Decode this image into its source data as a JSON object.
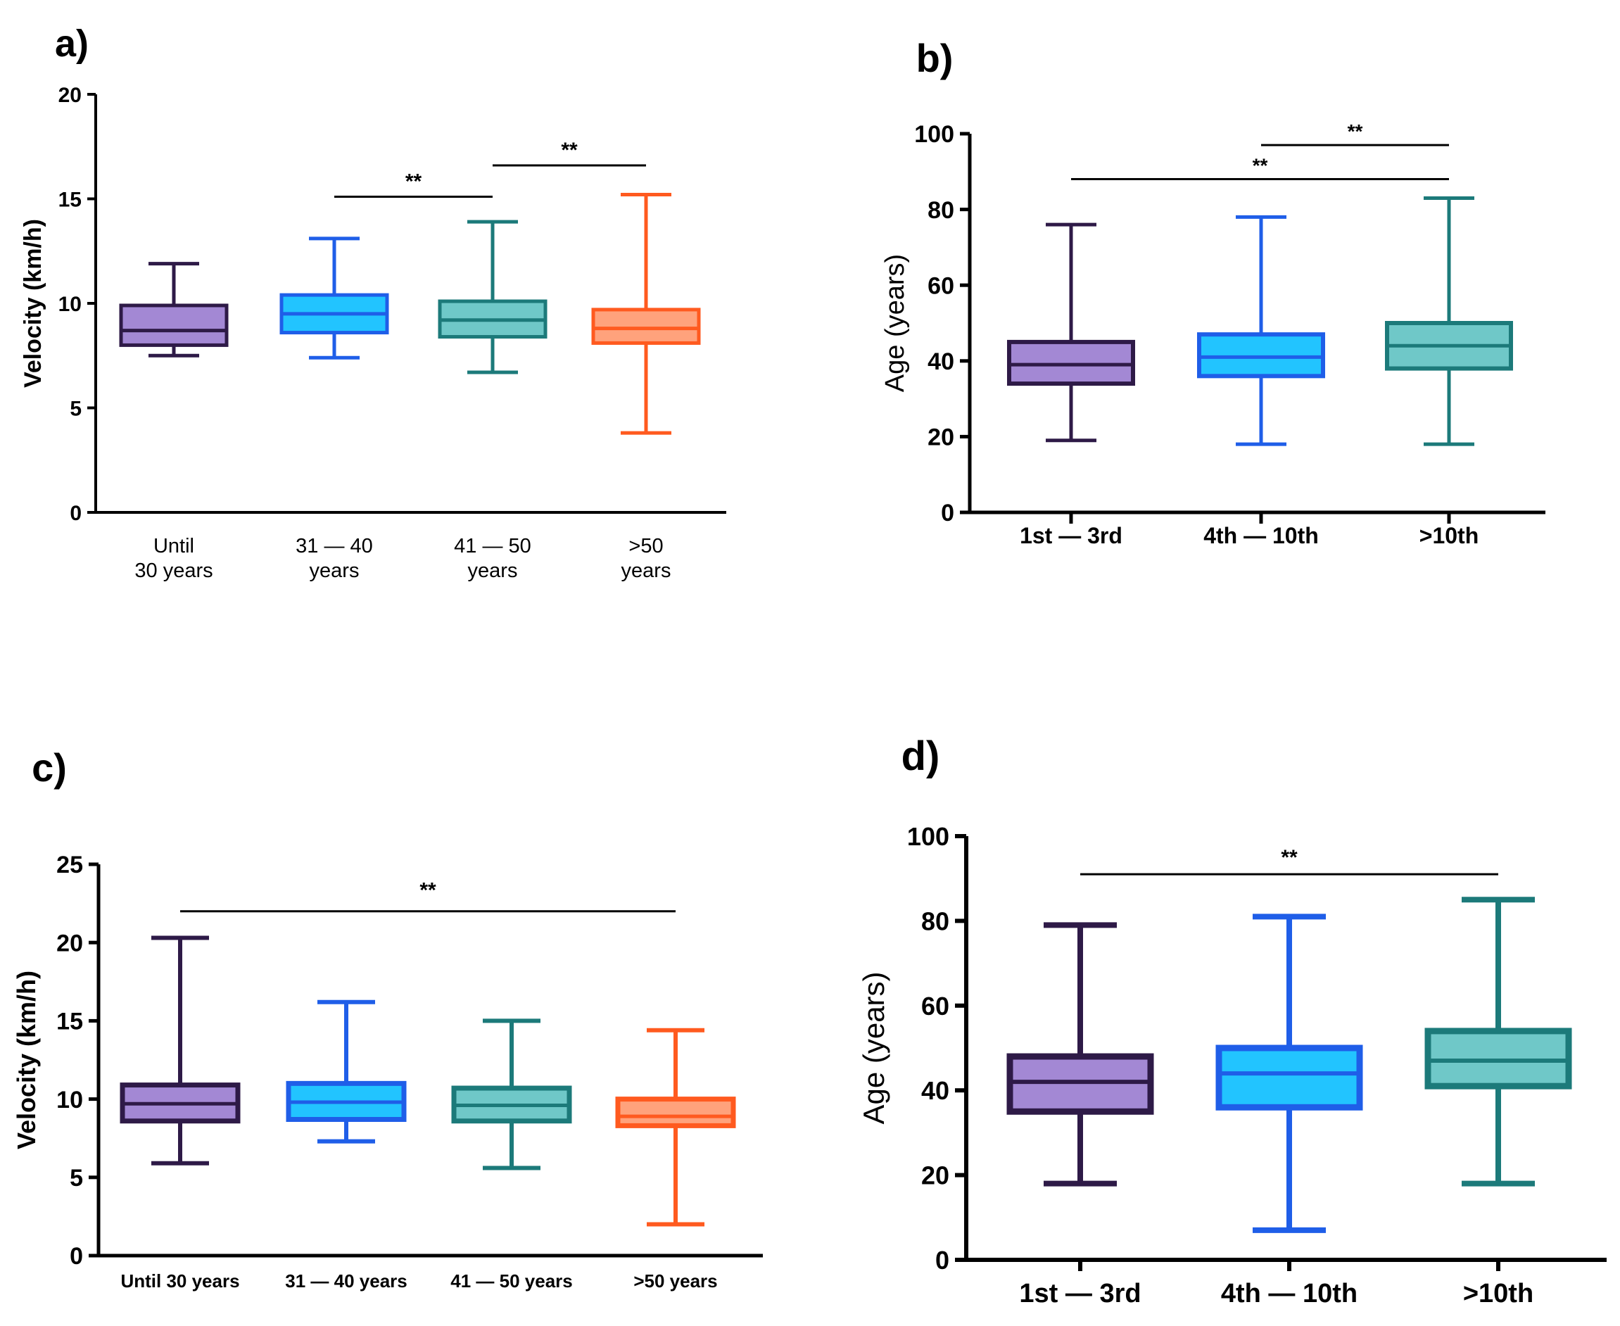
{
  "chart_data": [
    {
      "id": "a",
      "type": "boxplot",
      "panel_label": "a)",
      "ylabel": "Velocity (km/h)",
      "ylim": [
        0,
        20
      ],
      "yticks": [
        "0",
        "5",
        "10",
        "15",
        "20"
      ],
      "categories": [
        [
          "Until",
          "30 years"
        ],
        [
          "31 — 40",
          "years"
        ],
        [
          "41 — 50",
          "years"
        ],
        [
          ">50",
          "years"
        ]
      ],
      "series": [
        {
          "name": "Until 30 years",
          "min": 7.5,
          "q1": 8.0,
          "median": 8.7,
          "q3": 9.9,
          "max": 11.9
        },
        {
          "name": "31 — 40 years",
          "min": 7.4,
          "q1": 8.6,
          "median": 9.5,
          "q3": 10.4,
          "max": 13.1
        },
        {
          "name": "41 — 50 years",
          "min": 6.7,
          "q1": 8.4,
          "median": 9.2,
          "q3": 10.1,
          "max": 13.9
        },
        {
          "name": ">50 years",
          "min": 3.8,
          "q1": 8.1,
          "median": 8.8,
          "q3": 9.7,
          "max": 15.2
        }
      ],
      "significance": [
        {
          "from": 1,
          "to": 2,
          "y": 15.1,
          "label": "**"
        },
        {
          "from": 2,
          "to": 3,
          "y": 16.6,
          "label": "**"
        }
      ]
    },
    {
      "id": "b",
      "type": "boxplot",
      "panel_label": "b)",
      "ylabel": "Age (years)",
      "ylim": [
        0,
        100
      ],
      "yticks": [
        "0",
        "20",
        "40",
        "60",
        "80",
        "100"
      ],
      "categories": [
        [
          "1st — 3rd"
        ],
        [
          "4th — 10th"
        ],
        [
          ">10th"
        ]
      ],
      "series": [
        {
          "name": "1st — 3rd",
          "min": 19,
          "q1": 34,
          "median": 39,
          "q3": 45,
          "max": 76
        },
        {
          "name": "4th — 10th",
          "min": 18,
          "q1": 36,
          "median": 41,
          "q3": 47,
          "max": 78
        },
        {
          "name": ">10th",
          "min": 18,
          "q1": 38,
          "median": 44,
          "q3": 50,
          "max": 83
        }
      ],
      "significance": [
        {
          "from": 0,
          "to": 2,
          "y": 88,
          "label": "**"
        },
        {
          "from": 1,
          "to": 2,
          "y": 97,
          "label": "**"
        }
      ]
    },
    {
      "id": "c",
      "type": "boxplot",
      "panel_label": "c)",
      "ylabel": "Velocity (km/h)",
      "ylim": [
        0,
        25
      ],
      "yticks": [
        "0",
        "5",
        "10",
        "15",
        "20",
        "25"
      ],
      "categories": [
        [
          "Until 30 years"
        ],
        [
          "31 — 40 years"
        ],
        [
          "41 — 50 years"
        ],
        [
          ">50 years"
        ]
      ],
      "series": [
        {
          "name": "Until 30 years",
          "min": 5.9,
          "q1": 8.6,
          "median": 9.7,
          "q3": 10.9,
          "max": 20.3
        },
        {
          "name": "31 — 40 years",
          "min": 7.3,
          "q1": 8.7,
          "median": 9.8,
          "q3": 11.0,
          "max": 16.2
        },
        {
          "name": "41 — 50 years",
          "min": 5.6,
          "q1": 8.6,
          "median": 9.6,
          "q3": 10.7,
          "max": 15.0
        },
        {
          "name": ">50 years",
          "min": 2.0,
          "q1": 8.3,
          "median": 8.9,
          "q3": 10.0,
          "max": 14.4
        }
      ],
      "significance": [
        {
          "from": 0,
          "to": 3,
          "y": 22.0,
          "label": "**"
        }
      ]
    },
    {
      "id": "d",
      "type": "boxplot",
      "panel_label": "d)",
      "ylabel": "Age (years)",
      "ylim": [
        0,
        100
      ],
      "yticks": [
        "0",
        "20",
        "40",
        "60",
        "80",
        "100"
      ],
      "categories": [
        [
          "1st — 3rd"
        ],
        [
          "4th — 10th"
        ],
        [
          ">10th"
        ]
      ],
      "series": [
        {
          "name": "1st — 3rd",
          "min": 18,
          "q1": 35,
          "median": 42,
          "q3": 48,
          "max": 79
        },
        {
          "name": "4th — 10th",
          "min": 7,
          "q1": 36,
          "median": 44,
          "q3": 50,
          "max": 81
        },
        {
          "name": ">10th",
          "min": 18,
          "q1": 41,
          "median": 47,
          "q3": 54,
          "max": 85
        }
      ],
      "significance": [
        {
          "from": 0,
          "to": 2,
          "y": 91,
          "label": "**"
        }
      ]
    }
  ],
  "palette": {
    "four_groups": [
      {
        "stroke": "#2e1a47",
        "fill": "#a388d4"
      },
      {
        "stroke": "#1f5ee8",
        "fill": "#22c4ff"
      },
      {
        "stroke": "#1c7a7a",
        "fill": "#6fc8c8"
      },
      {
        "stroke": "#ff5a1f",
        "fill": "#ffa27c"
      }
    ],
    "three_groups": [
      {
        "stroke": "#2e1a47",
        "fill": "#a388d4"
      },
      {
        "stroke": "#1f5ee8",
        "fill": "#22c4ff"
      },
      {
        "stroke": "#1c7a7a",
        "fill": "#6fc8c8"
      }
    ]
  }
}
